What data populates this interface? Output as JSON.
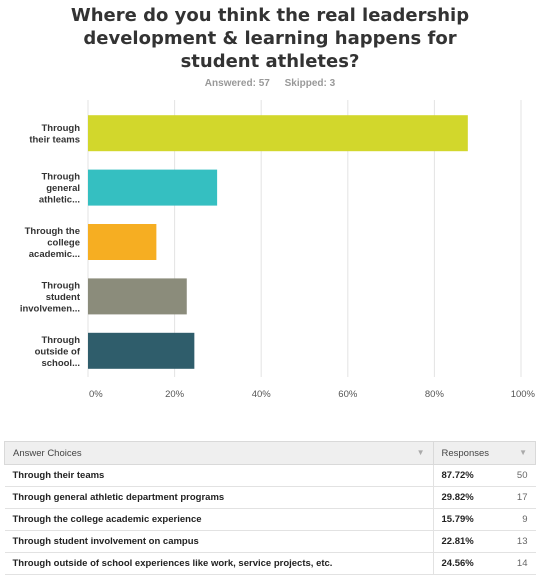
{
  "chart_data": {
    "type": "bar",
    "orientation": "horizontal",
    "title_lines": [
      "Where do you think the real leadership",
      "development & learning happens for",
      "student athletes?"
    ],
    "answered_label": "Answered: 57",
    "skipped_label": "Skipped: 3",
    "categories": [
      [
        "Through",
        "their teams"
      ],
      [
        "Through",
        "general",
        "athletic..."
      ],
      [
        "Through the",
        "college",
        "academic..."
      ],
      [
        "Through",
        "student",
        "involvemen..."
      ],
      [
        "Through",
        "outside of",
        "school..."
      ]
    ],
    "values": [
      87.72,
      29.82,
      15.79,
      22.81,
      24.56
    ],
    "colors": [
      "#d2d72c",
      "#35bfc1",
      "#f6ae22",
      "#8b8c7b",
      "#2f5d6b"
    ],
    "xlim": [
      0,
      100
    ],
    "ticks": [
      "0%",
      "20%",
      "40%",
      "60%",
      "80%",
      "100%"
    ],
    "grid": true
  },
  "table": {
    "headers": [
      "Answer Choices",
      "Responses"
    ],
    "rows": [
      {
        "choice": "Through their teams",
        "percent": "87.72%",
        "count": "50"
      },
      {
        "choice": "Through general athletic department programs",
        "percent": "29.82%",
        "count": "17"
      },
      {
        "choice": "Through the college academic experience",
        "percent": "15.79%",
        "count": "9"
      },
      {
        "choice": "Through student involvement on campus",
        "percent": "22.81%",
        "count": "13"
      },
      {
        "choice": "Through outside of school experiences like work, service projects, etc.",
        "percent": "24.56%",
        "count": "14"
      }
    ],
    "sort_icon": "chevron-down-icon"
  }
}
